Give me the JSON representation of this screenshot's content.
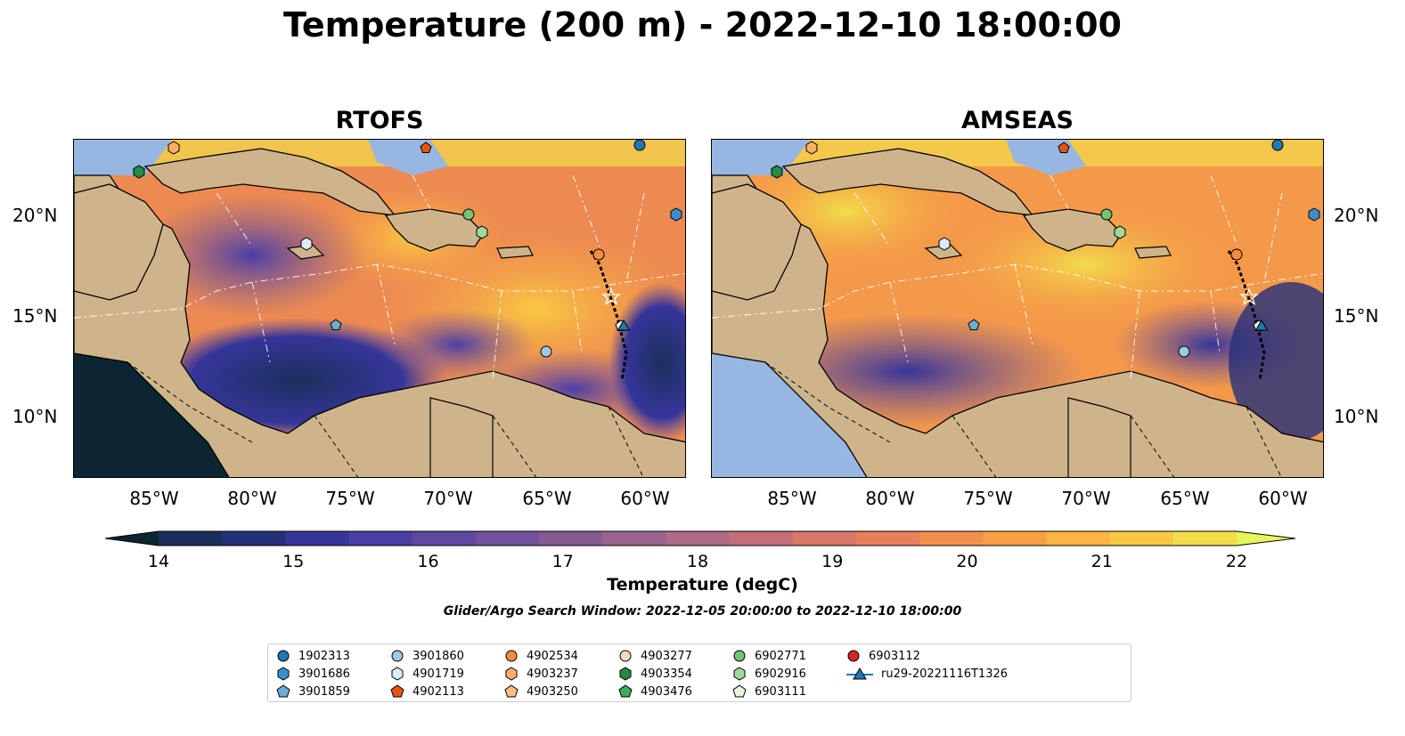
{
  "title": "Temperature (200 m) - 2022-12-10 18:00:00",
  "panels": [
    {
      "title": "RTOFS"
    },
    {
      "title": "AMSEAS"
    }
  ],
  "x_ticks": [
    "85°W",
    "80°W",
    "75°W",
    "70°W",
    "65°W",
    "60°W"
  ],
  "y_ticks": [
    "20°N",
    "15°N",
    "10°N"
  ],
  "colorbar": {
    "label": "Temperature (degC)",
    "ticks": [
      "14",
      "15",
      "16",
      "17",
      "18",
      "19",
      "20",
      "21",
      "22"
    ],
    "range": [
      14,
      22
    ],
    "colors": [
      "#1b2f5c",
      "#24307a",
      "#36359a",
      "#4b3ea6",
      "#5f479f",
      "#72519a",
      "#865b94",
      "#9a648e",
      "#ae6b85",
      "#c46f77",
      "#d87669",
      "#e9805b",
      "#f38f4d",
      "#f8a044",
      "#fbb342",
      "#f9c844",
      "#f2dd4b"
    ],
    "under_color": "#0c2533",
    "over_color": "#e8f55a"
  },
  "search_window": "Glider/Argo Search Window: 2022-12-05 20:00:00 to 2022-12-10 18:00:00",
  "legend": [
    {
      "label": "1902313",
      "marker": "circle",
      "color": "#1f77b4"
    },
    {
      "label": "3901686",
      "marker": "hexagon",
      "color": "#3b8fd0"
    },
    {
      "label": "3901859",
      "marker": "pentagon",
      "color": "#6baed6"
    },
    {
      "label": "3901860",
      "marker": "circle",
      "color": "#9ecae1"
    },
    {
      "label": "4901719",
      "marker": "hexagon",
      "color": "#deebf7"
    },
    {
      "label": "4902113",
      "marker": "pentagon",
      "color": "#e6550d"
    },
    {
      "label": "4902534",
      "marker": "circle",
      "color": "#fd8d3c"
    },
    {
      "label": "4903237",
      "marker": "hexagon",
      "color": "#fdae6b"
    },
    {
      "label": "4903250",
      "marker": "pentagon",
      "color": "#fdbe85"
    },
    {
      "label": "4903277",
      "marker": "circle",
      "color": "#fdd9b5"
    },
    {
      "label": "4903354",
      "marker": "hexagon",
      "color": "#238b45"
    },
    {
      "label": "4903476",
      "marker": "pentagon",
      "color": "#41ab5d"
    },
    {
      "label": "6902771",
      "marker": "circle",
      "color": "#74c476"
    },
    {
      "label": "6902916",
      "marker": "hexagon",
      "color": "#a1d99b"
    },
    {
      "label": "6903111",
      "marker": "pentagon",
      "color": "#e5f5e0"
    },
    {
      "label": "6903112",
      "marker": "circle",
      "color": "#d62728"
    },
    {
      "label": "ru29-20221116T1326",
      "marker": "triangle-line",
      "color": "#1f77b4"
    }
  ],
  "colors": {
    "land": "#cfb48b",
    "ocean": "#97b6e1",
    "contour_line": "#ffffff"
  }
}
